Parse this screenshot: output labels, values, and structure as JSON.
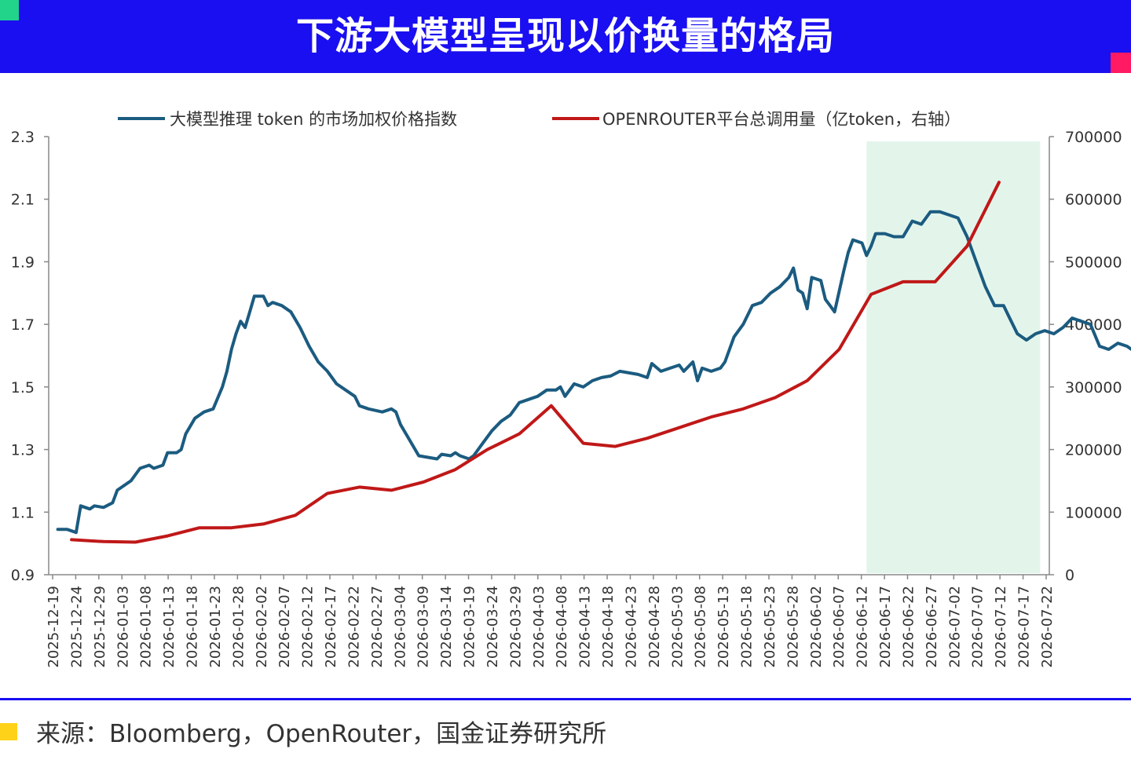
{
  "header": {
    "title": "下游大模型呈现以价换量的格局"
  },
  "footer": {
    "source": "来源：Bloomberg，OpenRouter，国金证券研究所"
  },
  "colors": {
    "header_bg": "#1a0ff0",
    "series_blue": "#1b5b80",
    "series_red": "#c01818",
    "highlight": "#e3f5eb"
  },
  "chart_data": {
    "type": "line",
    "x_ticks": [
      "2025-12-19",
      "2025-12-24",
      "2025-12-29",
      "2026-01-03",
      "2026-01-08",
      "2026-01-13",
      "2026-01-18",
      "2026-01-23",
      "2026-01-28",
      "2026-02-02",
      "2026-02-07",
      "2026-02-12",
      "2026-02-17",
      "2026-02-22",
      "2026-02-27",
      "2026-03-04",
      "2026-03-09",
      "2026-03-14",
      "2026-03-19",
      "2026-03-24",
      "2026-03-29",
      "2026-04-03",
      "2026-04-08",
      "2026-04-13",
      "2026-04-18",
      "2026-04-23",
      "2026-04-28",
      "2026-05-03",
      "2026-05-08",
      "2026-05-13",
      "2026-05-18",
      "2026-05-23",
      "2026-05-28",
      "2026-06-02",
      "2026-06-07",
      "2026-06-12",
      "2026-06-17",
      "2026-06-22",
      "2026-06-27",
      "2026-07-02",
      "2026-07-07",
      "2026-07-12",
      "2026-07-17",
      "2026-07-22"
    ],
    "left_axis": {
      "ylim": [
        0.9,
        2.3
      ],
      "ticks": [
        "0.9",
        "1.1",
        "1.3",
        "1.5",
        "1.7",
        "1.9",
        "2.1",
        "2.3"
      ]
    },
    "right_axis": {
      "ylim": [
        0,
        700000
      ],
      "ticks": [
        "0",
        "100000",
        "200000",
        "300000",
        "400000",
        "500000",
        "600000",
        "700000"
      ]
    },
    "highlight_range": {
      "from_day": 177,
      "to_day": 215
    },
    "grid": false,
    "legend_position": "top",
    "series": [
      {
        "name": "大模型推理 token 的市场加权价格指数",
        "axis": "left",
        "color": "#1b5b80",
        "points": [
          [
            0,
            1.045
          ],
          [
            2,
            1.045
          ],
          [
            3,
            1.04
          ],
          [
            4,
            1.035
          ],
          [
            5,
            1.12
          ],
          [
            7,
            1.11
          ],
          [
            8,
            1.12
          ],
          [
            10,
            1.115
          ],
          [
            12,
            1.13
          ],
          [
            13,
            1.17
          ],
          [
            15,
            1.19
          ],
          [
            16,
            1.2
          ],
          [
            18,
            1.24
          ],
          [
            20,
            1.25
          ],
          [
            21,
            1.24
          ],
          [
            23,
            1.25
          ],
          [
            24,
            1.29
          ],
          [
            26,
            1.29
          ],
          [
            27,
            1.3
          ],
          [
            28,
            1.35
          ],
          [
            30,
            1.4
          ],
          [
            32,
            1.42
          ],
          [
            34,
            1.43
          ],
          [
            36,
            1.5
          ],
          [
            37,
            1.55
          ],
          [
            38,
            1.62
          ],
          [
            39,
            1.67
          ],
          [
            40,
            1.71
          ],
          [
            41,
            1.69
          ],
          [
            42,
            1.74
          ],
          [
            43,
            1.79
          ],
          [
            45,
            1.79
          ],
          [
            46,
            1.76
          ],
          [
            47,
            1.77
          ],
          [
            49,
            1.76
          ],
          [
            51,
            1.74
          ],
          [
            53,
            1.69
          ],
          [
            55,
            1.63
          ],
          [
            57,
            1.58
          ],
          [
            59,
            1.55
          ],
          [
            61,
            1.51
          ],
          [
            63,
            1.49
          ],
          [
            65,
            1.47
          ],
          [
            66,
            1.44
          ],
          [
            68,
            1.43
          ],
          [
            71,
            1.42
          ],
          [
            73,
            1.43
          ],
          [
            74,
            1.42
          ],
          [
            75,
            1.38
          ],
          [
            77,
            1.33
          ],
          [
            79,
            1.28
          ],
          [
            81,
            1.275
          ],
          [
            83,
            1.27
          ],
          [
            84,
            1.285
          ],
          [
            86,
            1.28
          ],
          [
            87,
            1.29
          ],
          [
            88,
            1.28
          ],
          [
            90,
            1.27
          ],
          [
            91,
            1.28
          ],
          [
            93,
            1.32
          ],
          [
            95,
            1.36
          ],
          [
            97,
            1.39
          ],
          [
            99,
            1.41
          ],
          [
            101,
            1.45
          ],
          [
            103,
            1.46
          ],
          [
            105,
            1.47
          ],
          [
            107,
            1.49
          ],
          [
            109,
            1.49
          ],
          [
            110,
            1.5
          ],
          [
            111,
            1.47
          ],
          [
            113,
            1.51
          ],
          [
            115,
            1.5
          ],
          [
            117,
            1.52
          ],
          [
            119,
            1.53
          ],
          [
            121,
            1.535
          ],
          [
            123,
            1.55
          ],
          [
            125,
            1.545
          ],
          [
            127,
            1.54
          ],
          [
            129,
            1.53
          ],
          [
            130,
            1.575
          ],
          [
            132,
            1.55
          ],
          [
            134,
            1.56
          ],
          [
            136,
            1.57
          ],
          [
            137,
            1.55
          ],
          [
            139,
            1.58
          ],
          [
            140,
            1.52
          ],
          [
            141,
            1.56
          ],
          [
            143,
            1.55
          ],
          [
            145,
            1.56
          ],
          [
            146,
            1.58
          ],
          [
            148,
            1.66
          ],
          [
            150,
            1.7
          ],
          [
            152,
            1.76
          ],
          [
            154,
            1.77
          ],
          [
            156,
            1.8
          ],
          [
            158,
            1.82
          ],
          [
            160,
            1.85
          ],
          [
            161,
            1.88
          ],
          [
            162,
            1.81
          ],
          [
            163,
            1.8
          ],
          [
            164,
            1.75
          ],
          [
            165,
            1.85
          ],
          [
            167,
            1.84
          ],
          [
            168,
            1.78
          ],
          [
            169,
            1.76
          ],
          [
            170,
            1.74
          ],
          [
            172,
            1.87
          ],
          [
            173,
            1.93
          ],
          [
            174,
            1.97
          ],
          [
            176,
            1.96
          ],
          [
            177,
            1.92
          ],
          [
            178,
            1.95
          ],
          [
            179,
            1.99
          ],
          [
            181,
            1.99
          ],
          [
            183,
            1.98
          ],
          [
            185,
            1.98
          ],
          [
            187,
            2.03
          ],
          [
            189,
            2.02
          ],
          [
            191,
            2.06
          ],
          [
            193,
            2.06
          ],
          [
            195,
            2.05
          ],
          [
            197,
            2.04
          ],
          [
            199,
            1.98
          ],
          [
            201,
            1.9
          ],
          [
            203,
            1.82
          ],
          [
            205,
            1.76
          ],
          [
            207,
            1.76
          ],
          [
            208,
            1.73
          ],
          [
            210,
            1.67
          ],
          [
            212,
            1.65
          ],
          [
            214,
            1.67
          ],
          [
            216,
            1.68
          ],
          [
            218,
            1.67
          ],
          [
            220,
            1.69
          ],
          [
            222,
            1.72
          ],
          [
            224,
            1.71
          ],
          [
            226,
            1.7
          ],
          [
            228,
            1.63
          ],
          [
            230,
            1.62
          ],
          [
            232,
            1.64
          ],
          [
            234,
            1.63
          ],
          [
            236,
            1.61
          ],
          [
            238,
            1.58
          ],
          [
            240,
            1.57
          ],
          [
            242,
            1.59
          ],
          [
            244,
            1.57
          ],
          [
            245,
            1.55
          ]
        ]
      },
      {
        "name": "OPENROUTER平台总调用量（亿token，右轴）",
        "axis": "right",
        "color": "#c01818",
        "points": [
          [
            3,
            56000
          ],
          [
            10,
            53000
          ],
          [
            17,
            52000
          ],
          [
            24,
            62000
          ],
          [
            31,
            75000
          ],
          [
            38,
            75000
          ],
          [
            45,
            81000
          ],
          [
            52,
            95000
          ],
          [
            59,
            130000
          ],
          [
            66,
            140000
          ],
          [
            73,
            135000
          ],
          [
            80,
            148000
          ],
          [
            87,
            168000
          ],
          [
            94,
            200000
          ],
          [
            101,
            225000
          ],
          [
            108,
            270000
          ],
          [
            115,
            210000
          ],
          [
            122,
            205000
          ],
          [
            129,
            218000
          ],
          [
            136,
            235000
          ],
          [
            143,
            252000
          ],
          [
            150,
            265000
          ],
          [
            157,
            283000
          ],
          [
            164,
            310000
          ],
          [
            171,
            360000
          ],
          [
            178,
            448000
          ],
          [
            185,
            468000
          ],
          [
            192,
            468000
          ],
          [
            199,
            525000
          ],
          [
            206,
            627000
          ]
        ]
      }
    ]
  }
}
